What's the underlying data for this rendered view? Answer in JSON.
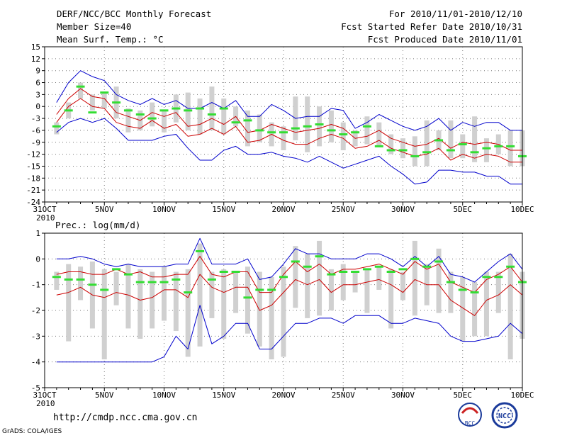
{
  "header": {
    "line1_left": "DERF/NCC/BCC Monthly Forecast",
    "line2_left": "Member Size=40",
    "line3_left": "Mean Surf. Temp.: °C",
    "line1_right": "For 2010/11/01-2010/12/10",
    "line2_right": "Fcst Started Refer Date 2010/10/31",
    "line3_right": "Fcst Produced Date 2010/11/01"
  },
  "footer": {
    "url": "http://cmdp.ncc.cma.gov.cn",
    "credit": "GrADS: COLA/IGES",
    "logo_bcc_text": "BCC",
    "logo_ncc_text": "NCC"
  },
  "colors": {
    "bar": "#d0d0d0",
    "green": "#33dd33",
    "mean": "#000000",
    "red": "#cc0000",
    "blue": "#0000cc",
    "grid": "#777777"
  },
  "chart_data": [
    {
      "type": "line",
      "title": "Mean Surf. Temp.: °C",
      "xlabel": "",
      "ylabel": "",
      "ylim": [
        -24,
        15
      ],
      "yticks": [
        15,
        12,
        9,
        6,
        3,
        0,
        -3,
        -6,
        -9,
        -12,
        -15,
        -18,
        -21,
        -24
      ],
      "ytick_labels": [
        "15",
        "12",
        "9",
        "6",
        "3",
        "0",
        "-3",
        "-6",
        "-9",
        "-12",
        "-15",
        "-18",
        "-21",
        "-24"
      ],
      "xticks_day": [
        0,
        5,
        10,
        15,
        20,
        25,
        30,
        35,
        40
      ],
      "xtick_labels": [
        "31OCT",
        "5NOV",
        "10NOV",
        "15NOV",
        "20NOV",
        "25NOV",
        "30NOV",
        "5DEC",
        "10DEC"
      ],
      "xtick_year": "2010",
      "grid": true,
      "x": [
        1,
        2,
        3,
        4,
        5,
        6,
        7,
        8,
        9,
        10,
        11,
        12,
        13,
        14,
        15,
        16,
        17,
        18,
        19,
        20,
        21,
        22,
        23,
        24,
        25,
        26,
        27,
        28,
        29,
        30,
        31,
        32,
        33,
        34,
        35,
        36,
        37,
        38,
        39,
        40
      ],
      "series": [
        {
          "name": "ensemble max",
          "color": "blue",
          "values": [
            1,
            6,
            9,
            7.5,
            6.5,
            3,
            1.5,
            0.5,
            2,
            0.5,
            1.5,
            -0.5,
            -0.5,
            1,
            -0.5,
            1.5,
            -2.5,
            -2.5,
            0.5,
            -1,
            -3,
            -2.5,
            -2.5,
            -0.5,
            -1,
            -5.5,
            -4,
            -2,
            -3.5,
            -5,
            -6,
            -5,
            -3,
            -6,
            -4,
            -5,
            -4,
            -4,
            -6,
            -6
          ]
        },
        {
          "name": "upper",
          "color": "red",
          "values": [
            -2,
            2,
            4.5,
            2.5,
            2,
            -1.5,
            -2.5,
            -3.5,
            -1.5,
            -2.5,
            -1.5,
            -5,
            -4.5,
            -3,
            -4.5,
            -2.5,
            -6.5,
            -6,
            -4.5,
            -5.5,
            -6.5,
            -6,
            -5.5,
            -4.5,
            -5.5,
            -8,
            -7.5,
            -6,
            -8,
            -9,
            -10,
            -9.5,
            -8,
            -10.5,
            -9,
            -9.5,
            -9,
            -9.5,
            -11,
            -11
          ]
        },
        {
          "name": "ensemble mean",
          "color": "black",
          "values": [
            -3,
            1,
            3.5,
            1.5,
            1,
            -2.5,
            -3.5,
            -4.5,
            -2.5,
            -4,
            -3,
            -6,
            -5.5,
            -4,
            -5.5,
            -3.5,
            -7.5,
            -7,
            -5.5,
            -6.5,
            -7.5,
            -7.5,
            -6.5,
            -5.5,
            -6.5,
            -9,
            -8.5,
            -7,
            -9,
            -10,
            -11,
            -10.5,
            -9,
            -11.5,
            -10,
            -11,
            -10.5,
            -11,
            -12.5,
            -12.5
          ]
        },
        {
          "name": "lower",
          "color": "red",
          "values": [
            -4,
            0,
            2,
            0,
            -0.5,
            -4,
            -5,
            -5.5,
            -3.5,
            -5.5,
            -4.5,
            -7.5,
            -7,
            -5.5,
            -7,
            -5,
            -9,
            -8.5,
            -7,
            -8.5,
            -9.5,
            -9.5,
            -8,
            -7,
            -8,
            -10.5,
            -10,
            -8.5,
            -10.5,
            -11.5,
            -12.5,
            -12,
            -10.5,
            -13.5,
            -12,
            -13,
            -12,
            -12.5,
            -14,
            -14
          ]
        },
        {
          "name": "ensemble min",
          "color": "blue",
          "values": [
            -6.5,
            -4,
            -3,
            -4,
            -3,
            -5.5,
            -8.5,
            -8.5,
            -8.5,
            -7.5,
            -7,
            -10.5,
            -13.5,
            -13.5,
            -11,
            -10,
            -12,
            -12,
            -11.5,
            -12.5,
            -13,
            -14,
            -12.5,
            -14,
            -15.5,
            -14.5,
            -13.5,
            -12.5,
            -15,
            -17,
            -19.5,
            -19,
            -16,
            -16,
            -16.5,
            -16.5,
            -17.5,
            -17.5,
            -19.5,
            -19.5
          ]
        }
      ],
      "bars": [
        [
          -7,
          -4
        ],
        [
          -3,
          1
        ],
        [
          2,
          6
        ],
        [
          -1,
          3
        ],
        [
          -0.5,
          3.5
        ],
        [
          -3,
          5
        ],
        [
          -6.5,
          -0.5
        ],
        [
          -6,
          -1
        ],
        [
          -5,
          1
        ],
        [
          -6.5,
          -1
        ],
        [
          -4,
          3
        ],
        [
          -6,
          3.5
        ],
        [
          -7,
          2
        ],
        [
          -6,
          5
        ],
        [
          -7,
          2
        ],
        [
          -5,
          0
        ],
        [
          -10,
          -1
        ],
        [
          -9,
          -2
        ],
        [
          -10,
          -4
        ],
        [
          -11,
          -5
        ],
        [
          -8.5,
          2.5
        ],
        [
          -11.5,
          2.5
        ],
        [
          -10,
          0
        ],
        [
          -9,
          -1
        ],
        [
          -11,
          -4
        ],
        [
          -10,
          -6
        ],
        [
          -9.5,
          -2.5
        ],
        [
          -10,
          -4
        ],
        [
          -12,
          -7
        ],
        [
          -13,
          -8
        ],
        [
          -15,
          -7.5
        ],
        [
          -15,
          -3.5
        ],
        [
          -11,
          -6
        ],
        [
          -13,
          -3.5
        ],
        [
          -13,
          -7
        ],
        [
          -14,
          -2.5
        ],
        [
          -14,
          -8
        ],
        [
          -12,
          -7
        ],
        [
          -15,
          -6
        ],
        [
          -15,
          -6
        ]
      ],
      "observed": [
        -5,
        -1,
        5,
        -1.5,
        3.5,
        1,
        -1,
        -2,
        -3,
        -1,
        -0.5,
        -1,
        -0.5,
        -2,
        -0.5,
        -4,
        -3.5,
        -6,
        -6.5,
        -6.5,
        -5.5,
        -5,
        -4.5,
        -6,
        -7,
        -6.5,
        -5,
        -10,
        -11,
        -11,
        -12.5,
        -11.5,
        -8.5,
        -11,
        -9.5,
        -11.5,
        -10.5,
        -10,
        -10,
        -12.5
      ]
    },
    {
      "type": "line",
      "title": "Prec.: log(mm/d)",
      "xlabel": "",
      "ylabel": "",
      "ylim": [
        -5,
        1
      ],
      "yticks": [
        1,
        0,
        -1,
        -2,
        -3,
        -4,
        -5
      ],
      "ytick_labels": [
        "1",
        "0",
        "-1",
        "-2",
        "-3",
        "-4",
        "-5"
      ],
      "xticks_day": [
        0,
        5,
        10,
        15,
        20,
        25,
        30,
        35,
        40
      ],
      "xtick_labels": [
        "31OCT",
        "5NOV",
        "10NOV",
        "15NOV",
        "20NOV",
        "25NOV",
        "30NOV",
        "5DEC",
        "10DEC"
      ],
      "xtick_year": "2010",
      "grid": true,
      "x": [
        1,
        2,
        3,
        4,
        5,
        6,
        7,
        8,
        9,
        10,
        11,
        12,
        13,
        14,
        15,
        16,
        17,
        18,
        19,
        20,
        21,
        22,
        23,
        24,
        25,
        26,
        27,
        28,
        29,
        30,
        31,
        32,
        33,
        34,
        35,
        36,
        37,
        38,
        39,
        40
      ],
      "series": [
        {
          "name": "ensemble max",
          "color": "blue",
          "values": [
            0,
            0,
            0.1,
            0,
            -0.2,
            -0.3,
            -0.2,
            -0.3,
            -0.3,
            -0.3,
            -0.2,
            -0.2,
            0.8,
            -0.2,
            -0.2,
            -0.2,
            0,
            -0.8,
            -0.7,
            -0.2,
            0.4,
            0.2,
            0.2,
            0,
            0,
            0,
            0.2,
            0.2,
            0,
            -0.3,
            0.1,
            -0.3,
            0.1,
            -0.6,
            -0.7,
            -0.9,
            -0.5,
            -0.1,
            0.2,
            -0.4
          ]
        },
        {
          "name": "upper",
          "color": "red",
          "values": [
            -0.6,
            -0.5,
            -0.5,
            -0.6,
            -0.6,
            -0.4,
            -0.6,
            -0.5,
            -0.7,
            -0.7,
            -0.6,
            -0.6,
            0.1,
            -0.6,
            -0.7,
            -0.5,
            -0.5,
            -1.3,
            -1.3,
            -0.6,
            -0.1,
            -0.5,
            -0.2,
            -0.6,
            -0.4,
            -0.4,
            -0.3,
            -0.2,
            -0.4,
            -0.6,
            -0.1,
            -0.4,
            -0.2,
            -0.9,
            -1.1,
            -1.3,
            -0.8,
            -0.6,
            -0.3,
            -0.9
          ]
        },
        {
          "name": "ensemble mean",
          "color": "black",
          "values": [
            -0.6,
            -0.6,
            -0.6,
            -0.7,
            -0.7,
            -0.5,
            -0.7,
            -0.6,
            -0.8,
            -0.8,
            -0.7,
            -0.7,
            0,
            -0.7,
            -0.8,
            -0.6,
            -0.6,
            -1.4,
            -1.4,
            -0.7,
            -0.2,
            -0.6,
            -0.3,
            -0.7,
            -0.5,
            -0.5,
            -0.4,
            -0.3,
            -0.5,
            -0.7,
            -0.2,
            -0.5,
            -0.3,
            -1,
            -1.2,
            -1.4,
            -0.9,
            -0.7,
            -0.4,
            -1
          ]
        },
        {
          "name": "lower",
          "color": "red",
          "values": [
            -1.4,
            -1.3,
            -1.1,
            -1.4,
            -1.5,
            -1.3,
            -1.4,
            -1.6,
            -1.5,
            -1.2,
            -1.2,
            -1.5,
            -0.6,
            -1.1,
            -1.3,
            -1.1,
            -1.1,
            -2,
            -1.8,
            -1.3,
            -0.8,
            -1,
            -0.8,
            -1.3,
            -1,
            -1,
            -0.9,
            -0.8,
            -1,
            -1.3,
            -0.8,
            -1,
            -1,
            -1.6,
            -1.9,
            -2.2,
            -1.6,
            -1.4,
            -1,
            -1.4
          ]
        },
        {
          "name": "ensemble min",
          "color": "blue",
          "values": [
            -4,
            -4,
            -4,
            -4,
            -4,
            -4,
            -4,
            -4,
            -4,
            -3.8,
            -3,
            -3.5,
            -1.8,
            -3.3,
            -3,
            -2.5,
            -2.5,
            -3.5,
            -3.5,
            -3,
            -2.5,
            -2.5,
            -2.3,
            -2.3,
            -2.5,
            -2.2,
            -2.2,
            -2.2,
            -2.5,
            -2.5,
            -2.3,
            -2.4,
            -2.5,
            -3,
            -3.2,
            -3.2,
            -3.1,
            -3,
            -2.5,
            -2.9
          ]
        }
      ],
      "bars": [
        [
          -1.2,
          -0.5
        ],
        [
          -3.2,
          -0.2
        ],
        [
          -1.6,
          -0.3
        ],
        [
          -2.7,
          -0.1
        ],
        [
          -3.9,
          -0.4
        ],
        [
          -1.8,
          -0.5
        ],
        [
          -2.7,
          -0.2
        ],
        [
          -3.1,
          -0.4
        ],
        [
          -2.7,
          -0.5
        ],
        [
          -2.4,
          -0.3
        ],
        [
          -2.8,
          -0.5
        ],
        [
          -3.8,
          -0.4
        ],
        [
          -3.4,
          0.6
        ],
        [
          -2.3,
          -0.5
        ],
        [
          -3.1,
          -0.4
        ],
        [
          -2.1,
          -0.5
        ],
        [
          -2.9,
          -0.3
        ],
        [
          -3.4,
          -0.5
        ],
        [
          -3.9,
          -0.7
        ],
        [
          -3.8,
          -0.3
        ],
        [
          -1.9,
          0.5
        ],
        [
          -2.3,
          0.2
        ],
        [
          -2.2,
          0.7
        ],
        [
          -2.0,
          -0.4
        ],
        [
          -1.6,
          -0.2
        ],
        [
          -1.3,
          -0.5
        ],
        [
          -2.1,
          -0.4
        ],
        [
          -1.2,
          -0.3
        ],
        [
          -2.7,
          -0.4
        ],
        [
          -1.6,
          -0.5
        ],
        [
          -2.2,
          0.7
        ],
        [
          -1.8,
          -0.2
        ],
        [
          -2.1,
          0.4
        ],
        [
          -2.1,
          -0.5
        ],
        [
          -3.2,
          -0.7
        ],
        [
          -3,
          -0.9
        ],
        [
          -3,
          -0.5
        ],
        [
          -2.1,
          -0.5
        ],
        [
          -3.9,
          0.2
        ],
        [
          -3.1,
          -0.5
        ]
      ],
      "observed": [
        -0.7,
        -0.8,
        -0.8,
        -1,
        -1.2,
        -0.4,
        -0.6,
        -0.9,
        -0.9,
        -0.9,
        -0.8,
        -1.3,
        0.3,
        -0.8,
        -0.5,
        -0.5,
        -1.5,
        -1.2,
        -1.2,
        -0.7,
        -0.1,
        -0.3,
        0.1,
        -0.6,
        -0.5,
        -0.5,
        -0.4,
        -0.3,
        -0.5,
        -0.4,
        0,
        -0.3,
        -0.1,
        -0.9,
        -1.2,
        -1.3,
        -0.7,
        -0.7,
        -0.3,
        -0.9
      ]
    }
  ]
}
